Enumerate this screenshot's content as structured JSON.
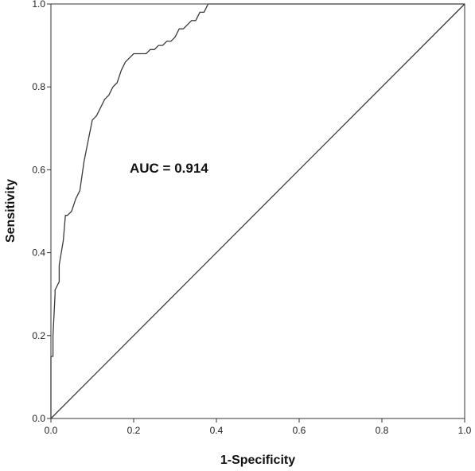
{
  "chart_data": {
    "type": "line",
    "title": "",
    "xlabel": "1-Specificity",
    "ylabel": "Sensitivity",
    "xlim": [
      0,
      1
    ],
    "ylim": [
      0,
      1
    ],
    "xticks": [
      "0.0",
      "0.2",
      "0.4",
      "0.6",
      "0.8",
      "1.0"
    ],
    "yticks": [
      "0.0",
      "0.2",
      "0.4",
      "0.6",
      "0.8",
      "1.0"
    ],
    "grid": false,
    "legend": "none",
    "annotation": "AUC = 0.914",
    "series": [
      {
        "x": [
          0.0,
          0.0,
          0.005,
          0.005,
          0.01,
          0.01,
          0.02,
          0.02,
          0.03,
          0.035,
          0.04,
          0.05,
          0.06,
          0.07,
          0.08,
          0.09,
          0.1,
          0.11,
          0.12,
          0.13,
          0.14,
          0.15,
          0.16,
          0.17,
          0.18,
          0.19,
          0.2,
          0.21,
          0.22,
          0.23,
          0.24,
          0.25,
          0.26,
          0.27,
          0.28,
          0.29,
          0.3,
          0.31,
          0.32,
          0.33,
          0.34,
          0.35,
          0.36,
          0.37,
          0.38,
          1.0
        ],
        "y": [
          0.0,
          0.15,
          0.15,
          0.2,
          0.3,
          0.31,
          0.33,
          0.37,
          0.43,
          0.49,
          0.49,
          0.5,
          0.53,
          0.55,
          0.62,
          0.67,
          0.72,
          0.73,
          0.75,
          0.77,
          0.78,
          0.8,
          0.81,
          0.84,
          0.86,
          0.87,
          0.88,
          0.88,
          0.88,
          0.88,
          0.89,
          0.89,
          0.9,
          0.9,
          0.91,
          0.91,
          0.92,
          0.94,
          0.94,
          0.95,
          0.96,
          0.96,
          0.98,
          0.98,
          1.0,
          1.0
        ]
      },
      {
        "x": [
          0.0,
          1.0
        ],
        "y": [
          0.0,
          1.0
        ]
      }
    ]
  }
}
